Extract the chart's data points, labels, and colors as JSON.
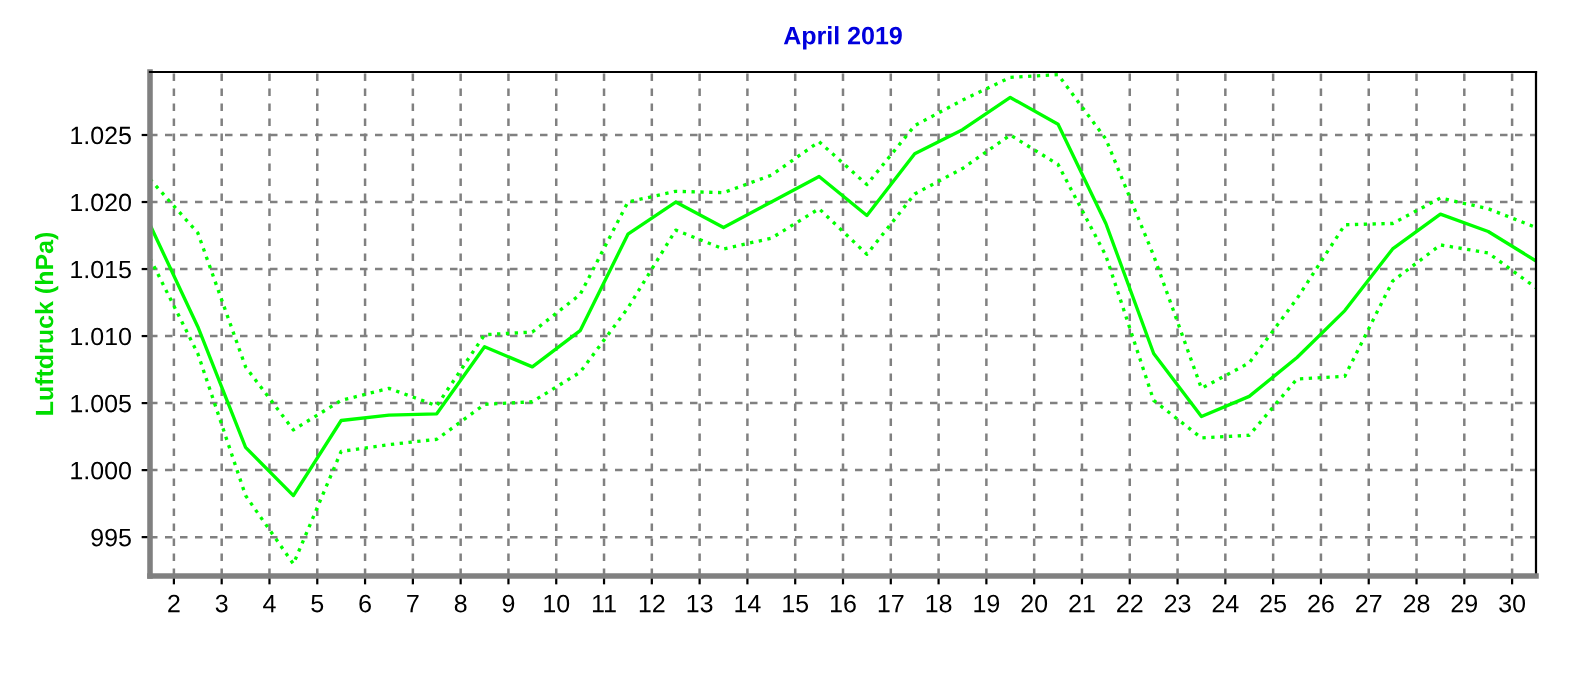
{
  "chart_data": {
    "type": "line",
    "title": "April 2019",
    "ylabel": "Luftdruck (hPa)",
    "x": [
      1.5,
      2.5,
      3.5,
      4.5,
      5.5,
      6.5,
      7.5,
      8.5,
      9.5,
      10.5,
      11.5,
      12.5,
      13.5,
      14.5,
      15.5,
      16.5,
      17.5,
      18.5,
      19.5,
      20.5,
      21.5,
      22.5,
      23.5,
      24.5,
      25.5,
      26.5,
      27.5,
      28.5,
      29.5,
      30.5
    ],
    "series": [
      {
        "color": "#00ff00",
        "line_style": "dotted",
        "values": [
          1021.7,
          1017.7,
          1007.7,
          1003.0,
          1005.2,
          1006.1,
          1004.8,
          1010.1,
          1010.3,
          1013.1,
          1020.0,
          1020.8,
          1020.7,
          1022.0,
          1024.5,
          1021.3,
          1025.7,
          1027.6,
          1029.3,
          1029.5,
          1024.7,
          1016.0,
          1006.1,
          1008.0,
          1012.8,
          1018.3,
          1018.4,
          1020.3,
          1019.5,
          1018.1
        ]
      },
      {
        "color": "#00ff00",
        "line_style": "solid",
        "values": [
          1018.3,
          1010.7,
          1001.7,
          998.1,
          1003.7,
          1004.1,
          1004.2,
          1009.2,
          1007.7,
          1010.4,
          1017.6,
          1020.0,
          1018.1,
          1020.0,
          1021.9,
          1019.0,
          1023.6,
          1025.4,
          1027.8,
          1025.8,
          1018.4,
          1008.7,
          1004.0,
          1005.5,
          1008.4,
          1011.9,
          1016.5,
          1019.1,
          1017.8,
          1015.6
        ]
      },
      {
        "color": "#00ff00",
        "line_style": "dotted",
        "values": [
          1015.8,
          1008.7,
          998.1,
          993.0,
          1001.4,
          1001.9,
          1002.3,
          1004.9,
          1005.1,
          1007.3,
          1012.1,
          1017.9,
          1016.5,
          1017.3,
          1019.5,
          1016.1,
          1020.6,
          1022.5,
          1025.0,
          1022.8,
          1016.0,
          1005.2,
          1002.4,
          1002.6,
          1006.8,
          1007.0,
          1014.1,
          1016.8,
          1016.2,
          1013.6
        ]
      }
    ],
    "xlim": [
      1.5,
      30.5
    ],
    "xticks": [
      2,
      3,
      4,
      5,
      6,
      7,
      8,
      9,
      10,
      11,
      12,
      13,
      14,
      15,
      16,
      17,
      18,
      19,
      20,
      21,
      22,
      23,
      24,
      25,
      26,
      27,
      28,
      29,
      30
    ],
    "ylim": [
      992.1,
      1029.7
    ],
    "yticks": [
      995,
      {
        "value": 1000,
        "label": "1.000"
      },
      {
        "value": 1005,
        "label": "1.005"
      },
      {
        "value": 1010,
        "label": "1.010"
      },
      {
        "value": 1015,
        "label": "1.015"
      },
      {
        "value": 1020,
        "label": "1.020"
      },
      {
        "value": 1025,
        "label": "1.025"
      }
    ],
    "grid": true,
    "marker": "none"
  }
}
